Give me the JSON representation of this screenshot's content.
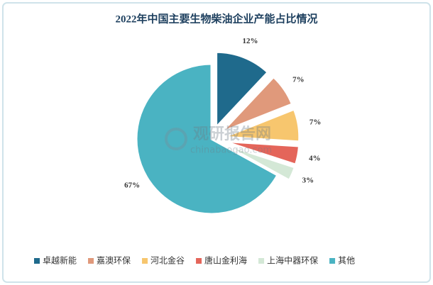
{
  "chart_data": {
    "type": "pie",
    "title": "2022年中国主要生物柴油企业产能占比情况",
    "categories": [
      "卓越新能",
      "嘉澳环保",
      "河北金谷",
      "唐山金利海",
      "上海中器环保",
      "其他"
    ],
    "values": [
      12,
      7,
      7,
      4,
      3,
      67
    ],
    "value_labels": [
      "12%",
      "7%",
      "7%",
      "4%",
      "3%",
      "67%"
    ],
    "colors": [
      "#1f6a8c",
      "#e0997b",
      "#f7c66e",
      "#e4655a",
      "#d4e8d6",
      "#4ab3c2"
    ],
    "legend": "bottom",
    "watermark": "观研报告网",
    "watermark_url": "chinabaogao.com"
  }
}
